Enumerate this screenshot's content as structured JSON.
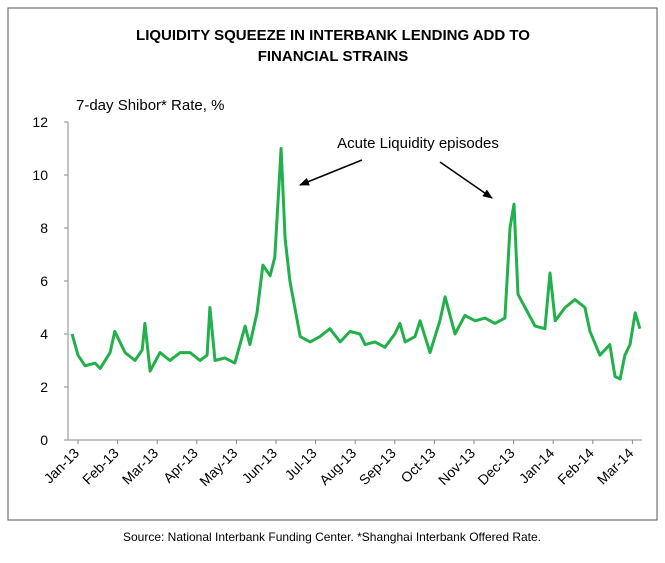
{
  "chart_data": {
    "type": "line",
    "title": [
      "LIQUIDITY SQUEEZE IN INTERBANK LENDING ADD TO",
      "FINANCIAL STRAINS"
    ],
    "y_label": "7-day Shibor* Rate, %",
    "annotation": "Acute Liquidity episodes",
    "source": "Source: National Interbank Funding Center. *Shanghai Interbank Offered Rate.",
    "color": "#22b04b",
    "x": [
      -0.15,
      0,
      0.18,
      0.43,
      0.56,
      0.81,
      0.93,
      1.19,
      1.44,
      1.62,
      1.69,
      1.82,
      2.07,
      2.32,
      2.58,
      2.83,
      3.08,
      3.26,
      3.33,
      3.46,
      3.71,
      3.96,
      4.22,
      4.34,
      4.52,
      4.67,
      4.85,
      4.97,
      5.13,
      5.23,
      5.35,
      5.61,
      5.86,
      6.11,
      6.36,
      6.62,
      6.87,
      7.12,
      7.25,
      7.5,
      7.75,
      8,
      8.13,
      8.26,
      8.51,
      8.64,
      8.89,
      9.14,
      9.27,
      9.52,
      9.77,
      10.03,
      10.28,
      10.53,
      10.78,
      10.91,
      11.01,
      11.11,
      11.29,
      11.54,
      11.79,
      11.92,
      12.05,
      12.3,
      12.55,
      12.8,
      12.93,
      13.18,
      13.43,
      13.56,
      13.69,
      13.81,
      13.94,
      14.07,
      14.19
    ],
    "values": [
      4.0,
      3.2,
      2.8,
      2.9,
      2.7,
      3.3,
      4.1,
      3.3,
      3.0,
      3.4,
      4.4,
      2.6,
      3.3,
      3.0,
      3.3,
      3.3,
      3.0,
      3.2,
      5.0,
      3.0,
      3.1,
      2.9,
      4.3,
      3.6,
      4.8,
      6.6,
      6.2,
      6.9,
      11.0,
      7.6,
      6.0,
      3.9,
      3.7,
      3.9,
      4.2,
      3.7,
      4.1,
      4.0,
      3.6,
      3.7,
      3.5,
      4.0,
      4.4,
      3.7,
      3.9,
      4.5,
      3.3,
      4.5,
      5.4,
      4.0,
      4.7,
      4.5,
      4.6,
      4.4,
      4.6,
      8.0,
      8.9,
      5.5,
      5.0,
      4.3,
      4.2,
      6.3,
      4.5,
      5.0,
      5.3,
      5.0,
      4.1,
      3.2,
      3.6,
      2.4,
      2.3,
      3.2,
      3.6,
      4.8,
      4.2
    ],
    "xlim": [
      -0.25,
      14.3
    ],
    "xticks": [
      {
        "value": 0,
        "label": "Jan-13"
      },
      {
        "value": 1,
        "label": "Feb-13"
      },
      {
        "value": 2,
        "label": "Mar-13"
      },
      {
        "value": 3,
        "label": "Apr-13"
      },
      {
        "value": 4,
        "label": "May-13"
      },
      {
        "value": 5,
        "label": "Jun-13"
      },
      {
        "value": 6,
        "label": "Jul-13"
      },
      {
        "value": 7,
        "label": "Aug-13"
      },
      {
        "value": 8,
        "label": "Sep-13"
      },
      {
        "value": 9,
        "label": "Oct-13"
      },
      {
        "value": 10,
        "label": "Nov-13"
      },
      {
        "value": 11,
        "label": "Dec-13"
      },
      {
        "value": 12,
        "label": "Jan-14"
      },
      {
        "value": 13,
        "label": "Feb-14"
      },
      {
        "value": 14,
        "label": "Mar-14"
      }
    ],
    "ylim": [
      0,
      12
    ],
    "yticks": [
      0,
      2,
      4,
      6,
      8,
      10,
      12
    ],
    "grid": false
  }
}
